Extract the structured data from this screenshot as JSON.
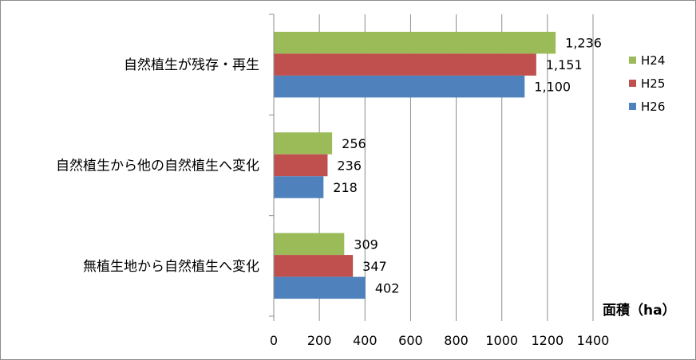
{
  "chart_data": {
    "type": "bar",
    "orientation": "horizontal",
    "categories": [
      "自然植生が残存・再生",
      "自然植生から他の自然植生へ変化",
      "無植生地から自然植生へ変化"
    ],
    "series": [
      {
        "name": "H24",
        "color": "#9BBB59",
        "values": [
          1236,
          256,
          309
        ],
        "labels": [
          "1,236",
          "256",
          "309"
        ]
      },
      {
        "name": "H25",
        "color": "#C0504D",
        "values": [
          1151,
          236,
          347
        ],
        "labels": [
          "1,151",
          "236",
          "347"
        ]
      },
      {
        "name": "H26",
        "color": "#4F81BD",
        "values": [
          1100,
          218,
          402
        ],
        "labels": [
          "1,100",
          "218",
          "402"
        ]
      }
    ],
    "xlim": [
      0,
      1400
    ],
    "xticks": [
      0,
      200,
      400,
      600,
      800,
      1000,
      1200,
      1400
    ],
    "xlabel": "面積（ha）",
    "ylabel": "",
    "title": "",
    "grid": true,
    "legend": "right"
  }
}
